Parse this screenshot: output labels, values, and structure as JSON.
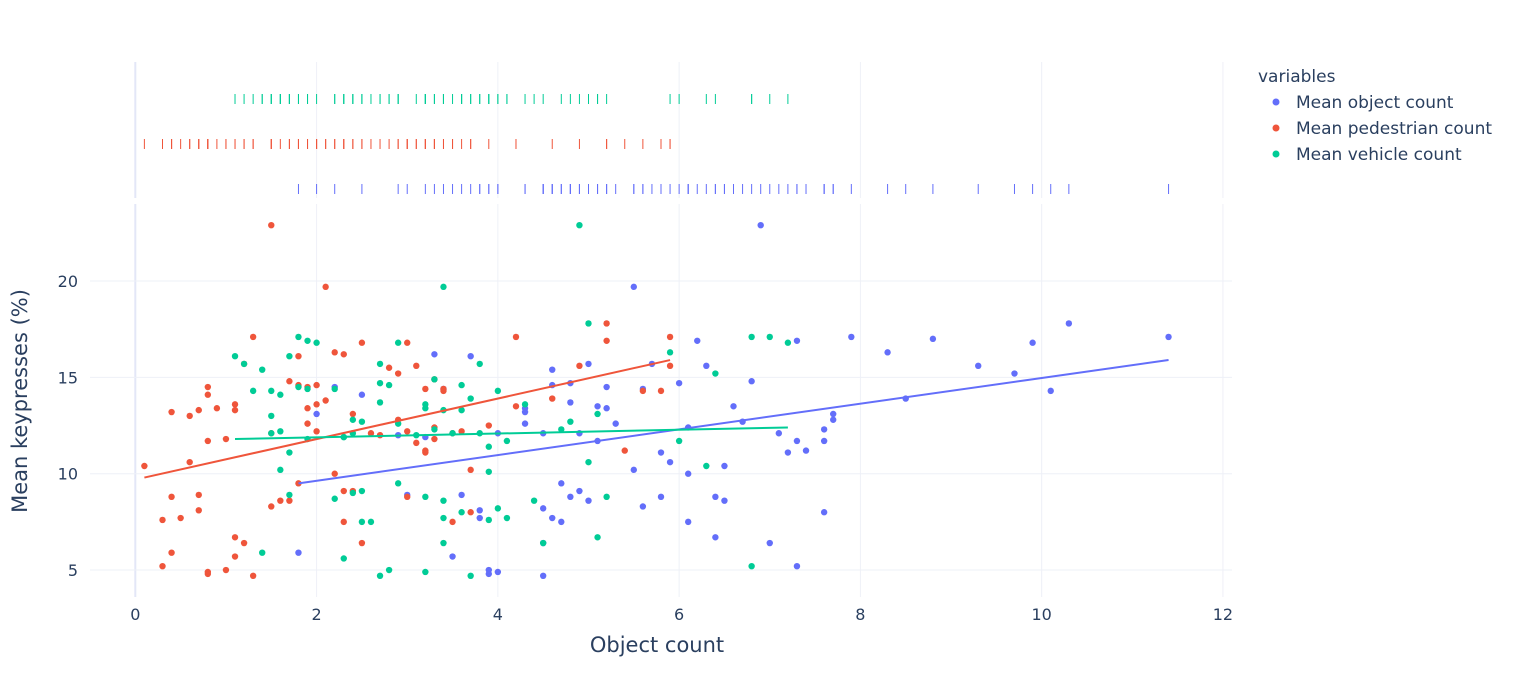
{
  "chart_data": {
    "type": "scatter",
    "xlabel": "Object count",
    "ylabel": "Mean keypresses (%)",
    "xlim": [
      -0.5,
      12.1
    ],
    "ylim": [
      3.6,
      24.0
    ],
    "x_ticks": [
      0,
      2,
      4,
      6,
      8,
      10,
      12
    ],
    "y_ticks": [
      5,
      10,
      15,
      20
    ],
    "grid": true,
    "marginal": "rug",
    "trendline": "ols",
    "legend": {
      "title": "variables",
      "placement": "top-right"
    },
    "series": [
      {
        "name": "Mean object count",
        "color": "#636efa",
        "trend": [
          [
            1.8,
            9.5
          ],
          [
            11.4,
            15.9
          ]
        ],
        "points": [
          [
            1.8,
            5.9
          ],
          [
            2.0,
            13.1
          ],
          [
            2.2,
            14.5
          ],
          [
            2.5,
            14.1
          ],
          [
            2.9,
            12.0
          ],
          [
            3.0,
            8.9
          ],
          [
            3.2,
            11.9
          ],
          [
            3.3,
            16.2
          ],
          [
            3.4,
            14.4
          ],
          [
            3.5,
            5.7
          ],
          [
            3.6,
            8.9
          ],
          [
            3.7,
            16.1
          ],
          [
            3.8,
            8.1
          ],
          [
            3.8,
            7.7
          ],
          [
            3.9,
            4.8
          ],
          [
            3.9,
            5.0
          ],
          [
            4.0,
            4.9
          ],
          [
            4.0,
            12.1
          ],
          [
            4.3,
            13.2
          ],
          [
            4.3,
            13.4
          ],
          [
            4.3,
            12.6
          ],
          [
            4.5,
            4.7
          ],
          [
            4.5,
            6.4
          ],
          [
            4.5,
            8.2
          ],
          [
            4.5,
            12.1
          ],
          [
            4.6,
            14.6
          ],
          [
            4.6,
            15.4
          ],
          [
            4.6,
            7.7
          ],
          [
            4.7,
            7.5
          ],
          [
            4.7,
            9.5
          ],
          [
            4.8,
            14.7
          ],
          [
            4.8,
            13.7
          ],
          [
            4.8,
            8.8
          ],
          [
            4.9,
            9.1
          ],
          [
            4.9,
            12.1
          ],
          [
            5.0,
            8.6
          ],
          [
            5.0,
            15.7
          ],
          [
            5.1,
            11.7
          ],
          [
            5.1,
            13.5
          ],
          [
            5.2,
            13.4
          ],
          [
            5.2,
            14.5
          ],
          [
            5.3,
            12.6
          ],
          [
            5.5,
            10.2
          ],
          [
            5.5,
            19.7
          ],
          [
            5.6,
            8.3
          ],
          [
            5.6,
            14.4
          ],
          [
            5.7,
            15.7
          ],
          [
            5.8,
            8.8
          ],
          [
            5.8,
            11.1
          ],
          [
            5.9,
            10.6
          ],
          [
            6.0,
            14.7
          ],
          [
            6.1,
            12.4
          ],
          [
            6.1,
            7.5
          ],
          [
            6.1,
            10.0
          ],
          [
            6.2,
            16.9
          ],
          [
            6.3,
            15.6
          ],
          [
            6.4,
            8.8
          ],
          [
            6.4,
            6.7
          ],
          [
            6.5,
            8.6
          ],
          [
            6.5,
            10.4
          ],
          [
            6.6,
            13.5
          ],
          [
            6.7,
            12.7
          ],
          [
            6.8,
            14.8
          ],
          [
            6.9,
            22.9
          ],
          [
            7.0,
            6.4
          ],
          [
            7.1,
            12.1
          ],
          [
            7.2,
            11.1
          ],
          [
            7.3,
            5.2
          ],
          [
            7.3,
            11.7
          ],
          [
            7.3,
            16.9
          ],
          [
            7.4,
            11.2
          ],
          [
            7.6,
            8.0
          ],
          [
            7.6,
            12.3
          ],
          [
            7.6,
            11.7
          ],
          [
            7.7,
            12.8
          ],
          [
            7.7,
            13.1
          ],
          [
            7.9,
            17.1
          ],
          [
            8.3,
            16.3
          ],
          [
            8.5,
            13.9
          ],
          [
            8.8,
            17.0
          ],
          [
            9.3,
            15.6
          ],
          [
            9.7,
            15.2
          ],
          [
            9.9,
            16.8
          ],
          [
            10.1,
            14.3
          ],
          [
            10.3,
            17.8
          ],
          [
            11.4,
            17.1
          ]
        ]
      },
      {
        "name": "Mean pedestrian count",
        "color": "#ef553b",
        "trend": [
          [
            0.1,
            9.8
          ],
          [
            5.9,
            15.9
          ]
        ],
        "points": [
          [
            0.1,
            10.4
          ],
          [
            0.3,
            7.6
          ],
          [
            0.3,
            5.2
          ],
          [
            0.4,
            8.8
          ],
          [
            0.4,
            13.2
          ],
          [
            0.4,
            5.9
          ],
          [
            0.5,
            7.7
          ],
          [
            0.6,
            10.6
          ],
          [
            0.6,
            13.0
          ],
          [
            0.7,
            8.9
          ],
          [
            0.7,
            8.1
          ],
          [
            0.7,
            13.3
          ],
          [
            0.8,
            11.7
          ],
          [
            0.8,
            14.5
          ],
          [
            0.8,
            4.8
          ],
          [
            0.8,
            4.9
          ],
          [
            0.8,
            14.1
          ],
          [
            0.9,
            13.4
          ],
          [
            1.0,
            11.8
          ],
          [
            1.0,
            5.0
          ],
          [
            1.1,
            6.7
          ],
          [
            1.1,
            13.6
          ],
          [
            1.1,
            13.3
          ],
          [
            1.1,
            5.7
          ],
          [
            1.2,
            15.7
          ],
          [
            1.2,
            6.4
          ],
          [
            1.3,
            4.7
          ],
          [
            1.3,
            17.1
          ],
          [
            1.5,
            12.1
          ],
          [
            1.5,
            22.9
          ],
          [
            1.5,
            8.3
          ],
          [
            1.6,
            8.6
          ],
          [
            1.7,
            14.8
          ],
          [
            1.7,
            8.6
          ],
          [
            1.8,
            14.6
          ],
          [
            1.8,
            16.1
          ],
          [
            1.8,
            9.5
          ],
          [
            1.9,
            14.5
          ],
          [
            1.9,
            12.6
          ],
          [
            1.9,
            13.4
          ],
          [
            2.0,
            14.6
          ],
          [
            2.0,
            12.2
          ],
          [
            2.0,
            13.6
          ],
          [
            2.1,
            19.7
          ],
          [
            2.1,
            13.8
          ],
          [
            2.2,
            16.3
          ],
          [
            2.2,
            10.0
          ],
          [
            2.3,
            16.2
          ],
          [
            2.3,
            7.5
          ],
          [
            2.3,
            9.1
          ],
          [
            2.4,
            9.1
          ],
          [
            2.4,
            13.1
          ],
          [
            2.5,
            6.4
          ],
          [
            2.5,
            16.8
          ],
          [
            2.6,
            12.1
          ],
          [
            2.7,
            12.0
          ],
          [
            2.8,
            15.5
          ],
          [
            2.9,
            15.2
          ],
          [
            2.9,
            12.8
          ],
          [
            3.0,
            12.2
          ],
          [
            3.0,
            16.8
          ],
          [
            3.0,
            8.8
          ],
          [
            3.1,
            11.6
          ],
          [
            3.1,
            15.6
          ],
          [
            3.2,
            11.1
          ],
          [
            3.2,
            11.2
          ],
          [
            3.2,
            14.4
          ],
          [
            3.3,
            14.9
          ],
          [
            3.3,
            11.8
          ],
          [
            3.3,
            12.4
          ],
          [
            3.4,
            14.3
          ],
          [
            3.4,
            14.4
          ],
          [
            3.5,
            12.1
          ],
          [
            3.5,
            7.5
          ],
          [
            3.6,
            12.2
          ],
          [
            3.7,
            8.0
          ],
          [
            3.7,
            10.2
          ],
          [
            3.9,
            12.5
          ],
          [
            4.2,
            13.5
          ],
          [
            4.2,
            17.1
          ],
          [
            4.6,
            13.9
          ],
          [
            4.9,
            15.6
          ],
          [
            5.2,
            17.8
          ],
          [
            5.2,
            16.9
          ],
          [
            5.4,
            11.2
          ],
          [
            5.6,
            14.3
          ],
          [
            5.8,
            14.3
          ],
          [
            5.9,
            17.1
          ],
          [
            5.9,
            15.6
          ]
        ]
      },
      {
        "name": "Mean vehicle count",
        "color": "#00cc96",
        "trend": [
          [
            1.1,
            11.8
          ],
          [
            7.2,
            12.4
          ]
        ],
        "points": [
          [
            1.1,
            16.1
          ],
          [
            1.2,
            15.7
          ],
          [
            1.3,
            14.3
          ],
          [
            1.4,
            5.9
          ],
          [
            1.4,
            15.4
          ],
          [
            1.5,
            12.1
          ],
          [
            1.5,
            14.3
          ],
          [
            1.5,
            13.0
          ],
          [
            1.6,
            14.1
          ],
          [
            1.6,
            12.2
          ],
          [
            1.6,
            10.2
          ],
          [
            1.7,
            16.1
          ],
          [
            1.7,
            11.1
          ],
          [
            1.7,
            8.9
          ],
          [
            1.8,
            17.1
          ],
          [
            1.8,
            14.5
          ],
          [
            1.9,
            14.4
          ],
          [
            1.9,
            16.9
          ],
          [
            1.9,
            11.8
          ],
          [
            2.0,
            16.8
          ],
          [
            2.2,
            14.4
          ],
          [
            2.2,
            8.7
          ],
          [
            2.3,
            11.9
          ],
          [
            2.3,
            5.6
          ],
          [
            2.3,
            11.9
          ],
          [
            2.4,
            12.1
          ],
          [
            2.4,
            9.0
          ],
          [
            2.4,
            12.8
          ],
          [
            2.5,
            7.5
          ],
          [
            2.5,
            9.1
          ],
          [
            2.5,
            12.7
          ],
          [
            2.6,
            7.5
          ],
          [
            2.7,
            14.7
          ],
          [
            2.7,
            13.7
          ],
          [
            2.7,
            15.7
          ],
          [
            2.7,
            4.7
          ],
          [
            2.8,
            14.6
          ],
          [
            2.8,
            5.0
          ],
          [
            2.9,
            12.6
          ],
          [
            2.9,
            9.5
          ],
          [
            2.9,
            16.8
          ],
          [
            3.1,
            12.0
          ],
          [
            3.2,
            13.4
          ],
          [
            3.2,
            13.6
          ],
          [
            3.2,
            8.8
          ],
          [
            3.2,
            4.9
          ],
          [
            3.3,
            12.3
          ],
          [
            3.3,
            14.9
          ],
          [
            3.4,
            19.7
          ],
          [
            3.4,
            13.3
          ],
          [
            3.4,
            8.6
          ],
          [
            3.4,
            7.7
          ],
          [
            3.4,
            6.4
          ],
          [
            3.5,
            12.1
          ],
          [
            3.6,
            14.6
          ],
          [
            3.6,
            13.3
          ],
          [
            3.6,
            8.0
          ],
          [
            3.7,
            4.7
          ],
          [
            3.7,
            13.9
          ],
          [
            3.8,
            12.1
          ],
          [
            3.8,
            15.7
          ],
          [
            3.9,
            10.1
          ],
          [
            3.9,
            11.4
          ],
          [
            3.9,
            7.6
          ],
          [
            4.0,
            8.2
          ],
          [
            4.0,
            14.3
          ],
          [
            4.1,
            11.7
          ],
          [
            4.1,
            7.7
          ],
          [
            4.3,
            13.6
          ],
          [
            4.4,
            8.6
          ],
          [
            4.5,
            6.4
          ],
          [
            4.7,
            12.3
          ],
          [
            4.8,
            12.7
          ],
          [
            4.9,
            22.9
          ],
          [
            5.0,
            17.8
          ],
          [
            5.0,
            10.6
          ],
          [
            5.1,
            6.7
          ],
          [
            5.1,
            13.1
          ],
          [
            5.2,
            8.8
          ],
          [
            5.9,
            16.3
          ],
          [
            6.0,
            11.7
          ],
          [
            6.3,
            10.4
          ],
          [
            6.4,
            15.2
          ],
          [
            6.8,
            17.1
          ],
          [
            6.8,
            5.2
          ],
          [
            7.0,
            17.1
          ],
          [
            7.2,
            16.8
          ]
        ]
      }
    ]
  }
}
